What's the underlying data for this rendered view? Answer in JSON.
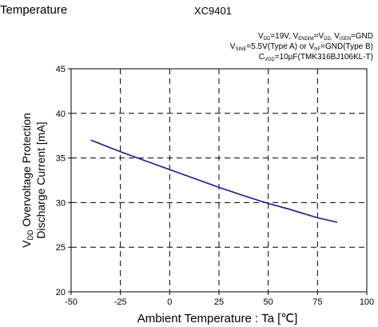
{
  "header": {
    "left_title": "Temperature",
    "right_title": "XC9401"
  },
  "conditions": {
    "line1": [
      {
        "t": "V"
      },
      {
        "t": "DD",
        "sub": true
      },
      {
        "t": "=19V, V"
      },
      {
        "t": "ENDIM",
        "sub": true
      },
      {
        "t": "=V"
      },
      {
        "t": "DD,",
        "sub": true
      },
      {
        "t": " V"
      },
      {
        "t": "ISEN",
        "sub": true
      },
      {
        "t": "=GND"
      }
    ],
    "line2": [
      {
        "t": "V"
      },
      {
        "t": "SINE",
        "sub": true
      },
      {
        "t": "=5.5V(Type A) or V"
      },
      {
        "t": "NF",
        "sub": true
      },
      {
        "t": "=GND(Type B)"
      }
    ],
    "line3": [
      {
        "t": "C"
      },
      {
        "t": "VDD",
        "sub": true
      },
      {
        "t": "=10µF(TMK316BJ106KL-T)"
      }
    ]
  },
  "chart_data": {
    "type": "line",
    "title": "",
    "xlabel": "Ambient Temperature : Ta [℃]",
    "ylabel_line1_main": "V",
    "ylabel_line1_sub": "DD",
    "ylabel_line1_rest": " Overvoltage Protection",
    "ylabel_line2": "Discharge Current [mA]",
    "xlim": [
      -50,
      100
    ],
    "ylim": [
      20,
      45
    ],
    "xticks": [
      -50,
      -25,
      0,
      25,
      50,
      75,
      100
    ],
    "yticks": [
      20,
      25,
      30,
      35,
      40,
      45
    ],
    "grid": "dashed",
    "series": [
      {
        "color": "#1a1a8c",
        "x": [
          -40,
          -25,
          -10,
          0,
          10,
          25,
          40,
          50,
          60,
          75,
          85
        ],
        "y": [
          37.0,
          35.7,
          34.5,
          33.7,
          32.9,
          31.7,
          30.6,
          29.9,
          29.3,
          28.3,
          27.8
        ]
      }
    ]
  }
}
